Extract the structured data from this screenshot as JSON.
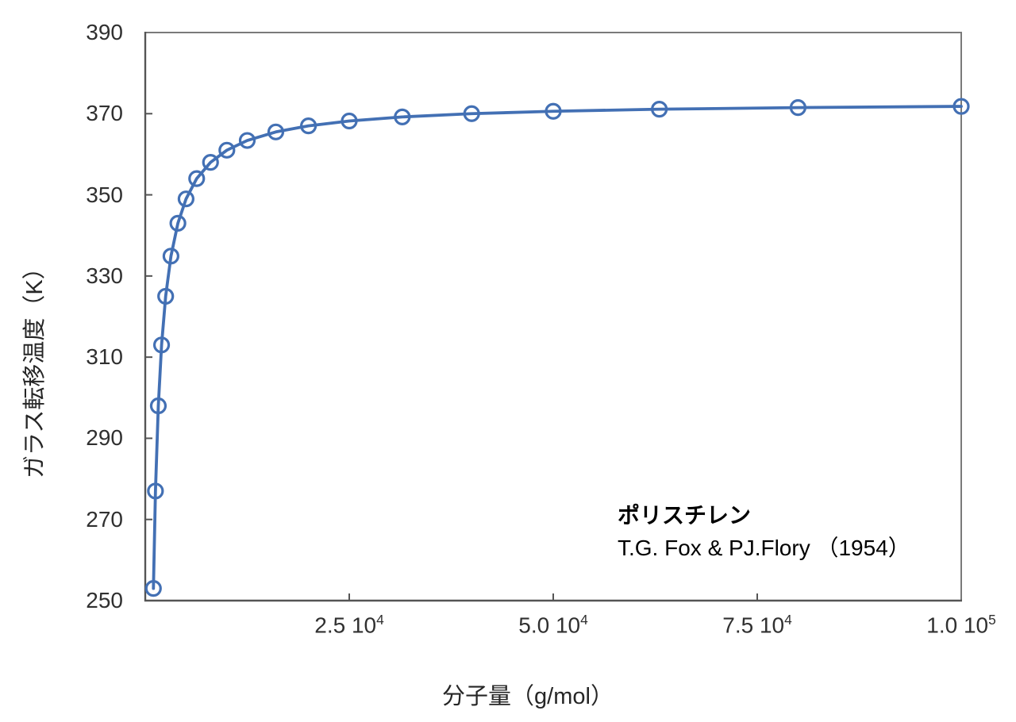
{
  "chart_data": {
    "type": "scatter",
    "title": "",
    "xlabel": "分子量（g/mol）",
    "ylabel": "ガラス転移温度（K）",
    "xlim": [
      0,
      100000
    ],
    "ylim": [
      250,
      390
    ],
    "grid": false,
    "legend_position": "none",
    "y_ticks": [
      250,
      270,
      290,
      310,
      330,
      350,
      370,
      390
    ],
    "x_ticks": [
      {
        "value": 25000,
        "base": "2.5 10",
        "sup": "4"
      },
      {
        "value": 50000,
        "base": "5.0 10",
        "sup": "4"
      },
      {
        "value": 75000,
        "base": "7.5 10",
        "sup": "4"
      },
      {
        "value": 100000,
        "base": "1.0 10",
        "sup": "5"
      }
    ],
    "series": [
      {
        "marker": "open-circle",
        "color": "#4370B4",
        "points": [
          {
            "x": 1000,
            "y": 253.0
          },
          {
            "x": 1250,
            "y": 277.0
          },
          {
            "x": 1600,
            "y": 298.0
          },
          {
            "x": 2000,
            "y": 313.0
          },
          {
            "x": 2500,
            "y": 325.0
          },
          {
            "x": 3150,
            "y": 334.9
          },
          {
            "x": 4000,
            "y": 343.0
          },
          {
            "x": 5000,
            "y": 349.0
          },
          {
            "x": 6300,
            "y": 354.0
          },
          {
            "x": 8000,
            "y": 358.0
          },
          {
            "x": 10000,
            "y": 361.0
          },
          {
            "x": 12500,
            "y": 363.4
          },
          {
            "x": 16000,
            "y": 365.5
          },
          {
            "x": 20000,
            "y": 367.0
          },
          {
            "x": 25000,
            "y": 368.2
          },
          {
            "x": 31500,
            "y": 369.2
          },
          {
            "x": 40000,
            "y": 370.0
          },
          {
            "x": 50000,
            "y": 370.6
          },
          {
            "x": 63000,
            "y": 371.1
          },
          {
            "x": 80000,
            "y": 371.5
          },
          {
            "x": 100000,
            "y": 371.8
          }
        ]
      }
    ],
    "annotation": {
      "line1": "ポリスチレン",
      "line2": "T.G. Fox & PJ.Flory （1954）"
    },
    "colors": {
      "series": "#4370B4",
      "plot_border": "#7A7A7A",
      "axis": "#555555",
      "tick_label": "#303030",
      "axis_title": "#262626",
      "annotation": "#000000",
      "background": "#FFFFFF"
    }
  }
}
